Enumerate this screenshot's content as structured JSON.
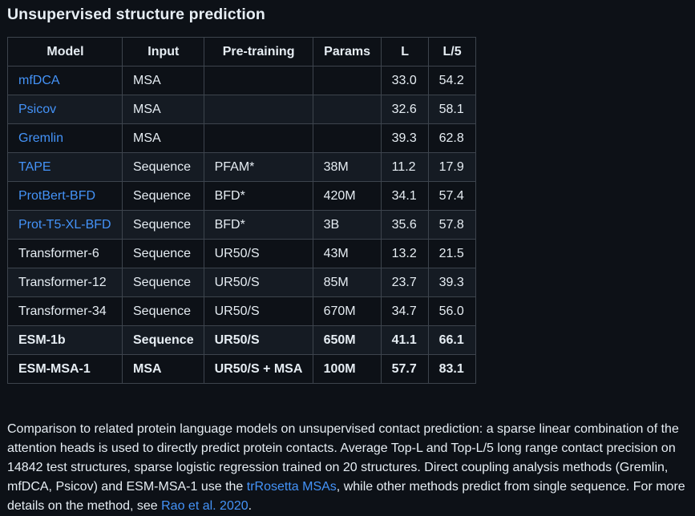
{
  "title": "Unsupervised structure prediction",
  "table": {
    "headers": [
      "Model",
      "Input",
      "Pre-training",
      "Params",
      "L",
      "L/5"
    ],
    "rows": [
      {
        "model": "mfDCA",
        "link": true,
        "bold": false,
        "input": "MSA",
        "pretraining": "",
        "params": "",
        "l": "33.0",
        "l5": "54.2"
      },
      {
        "model": "Psicov",
        "link": true,
        "bold": false,
        "input": "MSA",
        "pretraining": "",
        "params": "",
        "l": "32.6",
        "l5": "58.1"
      },
      {
        "model": "Gremlin",
        "link": true,
        "bold": false,
        "input": "MSA",
        "pretraining": "",
        "params": "",
        "l": "39.3",
        "l5": "62.8"
      },
      {
        "model": "TAPE",
        "link": true,
        "bold": false,
        "input": "Sequence",
        "pretraining": "PFAM*",
        "params": "38M",
        "l": "11.2",
        "l5": "17.9"
      },
      {
        "model": "ProtBert-BFD",
        "link": true,
        "bold": false,
        "input": "Sequence",
        "pretraining": "BFD*",
        "params": "420M",
        "l": "34.1",
        "l5": "57.4"
      },
      {
        "model": "Prot-T5-XL-BFD",
        "link": true,
        "bold": false,
        "input": "Sequence",
        "pretraining": "BFD*",
        "params": "3B",
        "l": "35.6",
        "l5": "57.8"
      },
      {
        "model": "Transformer-6",
        "link": false,
        "bold": false,
        "input": "Sequence",
        "pretraining": "UR50/S",
        "params": "43M",
        "l": "13.2",
        "l5": "21.5"
      },
      {
        "model": "Transformer-12",
        "link": false,
        "bold": false,
        "input": "Sequence",
        "pretraining": "UR50/S",
        "params": "85M",
        "l": "23.7",
        "l5": "39.3"
      },
      {
        "model": "Transformer-34",
        "link": false,
        "bold": false,
        "input": "Sequence",
        "pretraining": "UR50/S",
        "params": "670M",
        "l": "34.7",
        "l5": "56.0"
      },
      {
        "model": "ESM-1b",
        "link": false,
        "bold": true,
        "input": "Sequence",
        "pretraining": "UR50/S",
        "params": "650M",
        "l": "41.1",
        "l5": "66.1"
      },
      {
        "model": "ESM-MSA-1",
        "link": false,
        "bold": true,
        "input": "MSA",
        "pretraining": "UR50/S + MSA",
        "params": "100M",
        "l": "57.7",
        "l5": "83.1"
      }
    ]
  },
  "caption": {
    "part1": "Comparison to related protein language models on unsupervised contact prediction: a sparse linear combination of the attention heads is used to directly predict protein contacts. Average Top-L and Top-L/5 long range contact precision on 14842 test structures, sparse logistic regression trained on 20 structures. Direct coupling analysis methods (Gremlin, mfDCA, Psicov) and ESM-MSA-1 use the ",
    "link1": "trRosetta MSAs",
    "part2": ", while other methods predict from single sequence. For more details on the method, see ",
    "link2": "Rao et al. 2020",
    "part3": "."
  },
  "colors": {
    "background": "#0d1117",
    "row_alt": "#151b23",
    "border": "#3d444d",
    "text": "#e6edf3",
    "link": "#4493f8"
  }
}
